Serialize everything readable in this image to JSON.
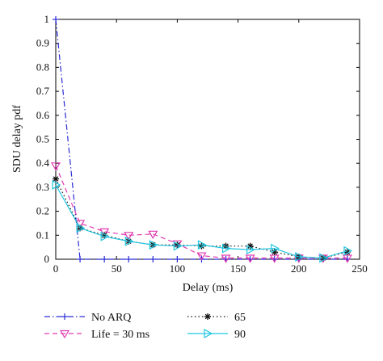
{
  "chart_data": {
    "type": "line",
    "title": "",
    "xlabel": "Delay (ms)",
    "ylabel": "SDU delay pdf",
    "xlim": [
      0,
      250
    ],
    "ylim": [
      0,
      1
    ],
    "xticks": [
      0,
      50,
      100,
      150,
      200,
      250
    ],
    "yticks": [
      0,
      0.1,
      0.2,
      0.3,
      0.4,
      0.5,
      0.6,
      0.7,
      0.8,
      0.9,
      1
    ],
    "grid": false,
    "legend_position": "bottom, two columns below plot",
    "series": [
      {
        "name": "No ARQ",
        "color": "#2a2ad6",
        "line": "dash-dot",
        "marker": "plus",
        "x": [
          0,
          20,
          40,
          60,
          80,
          100,
          120,
          140,
          160,
          180,
          200,
          220,
          240
        ],
        "y": [
          1.0,
          0,
          0,
          0,
          0,
          0,
          0,
          0,
          0,
          0,
          0,
          0,
          0
        ]
      },
      {
        "name": "Life = 30 ms",
        "color": "#e03ab0",
        "line": "dashed",
        "marker": "triangle-down",
        "x": [
          0,
          20,
          40,
          60,
          80,
          100,
          120,
          140,
          160,
          180,
          200,
          220,
          240
        ],
        "y": [
          0.39,
          0.15,
          0.115,
          0.1,
          0.105,
          0.065,
          0.015,
          0.005,
          0.005,
          0.005,
          0.005,
          0.005,
          0.005
        ]
      },
      {
        "name": "65",
        "color": "#111111",
        "line": "dotted",
        "marker": "star",
        "x": [
          0,
          20,
          40,
          60,
          80,
          100,
          120,
          140,
          160,
          180,
          200,
          220,
          240
        ],
        "y": [
          0.335,
          0.13,
          0.1,
          0.075,
          0.06,
          0.06,
          0.055,
          0.055,
          0.055,
          0.03,
          0.01,
          0.005,
          0.03
        ]
      },
      {
        "name": "90",
        "color": "#22c6e0",
        "line": "solid",
        "marker": "triangle-right",
        "x": [
          0,
          20,
          40,
          60,
          80,
          100,
          120,
          140,
          160,
          180,
          200,
          220,
          240
        ],
        "y": [
          0.31,
          0.13,
          0.095,
          0.075,
          0.06,
          0.055,
          0.06,
          0.045,
          0.04,
          0.045,
          0.01,
          0.005,
          0.035
        ]
      }
    ]
  }
}
